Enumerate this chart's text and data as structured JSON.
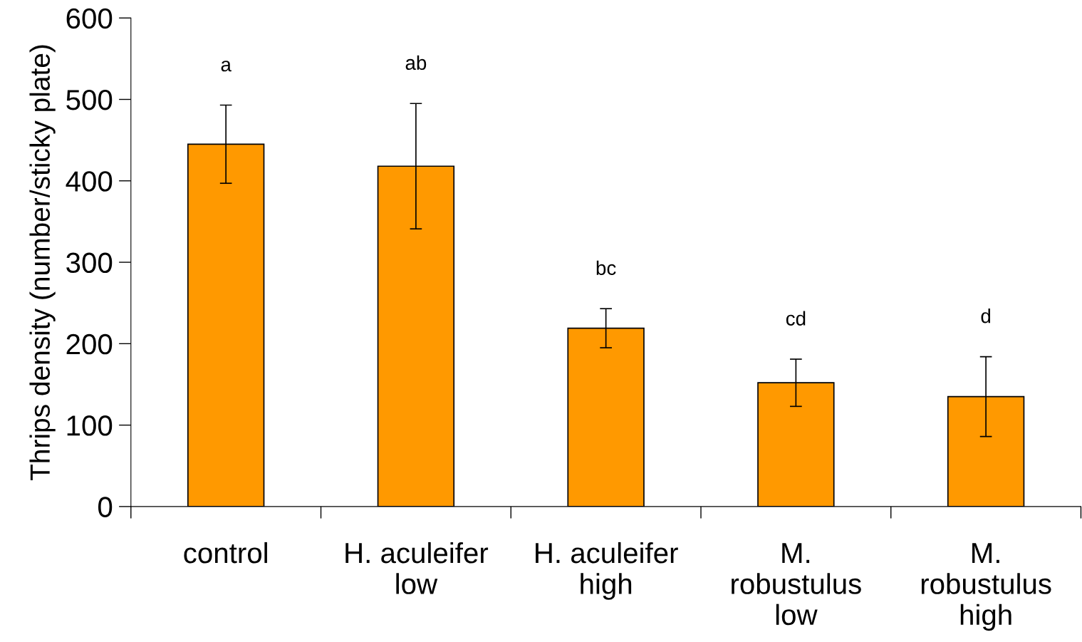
{
  "chart_data": {
    "type": "bar",
    "ylabel": "Thrips density (number/sticky plate)",
    "categories": [
      "control",
      "H. aculeifer\nlow",
      "H. aculeifer\nhigh",
      "M.\nrobustulus\nlow",
      "M.\nrobustulus\nhigh"
    ],
    "values": [
      445,
      418,
      219,
      152,
      135
    ],
    "errors": [
      48,
      77,
      24,
      29,
      49
    ],
    "color": "#ff9900",
    "ylim": [
      0,
      600
    ],
    "yticks": [
      0,
      100,
      200,
      300,
      400,
      500,
      600
    ],
    "grid": false,
    "annotations": [
      "a",
      "ab",
      "bc",
      "cd",
      "d"
    ]
  }
}
